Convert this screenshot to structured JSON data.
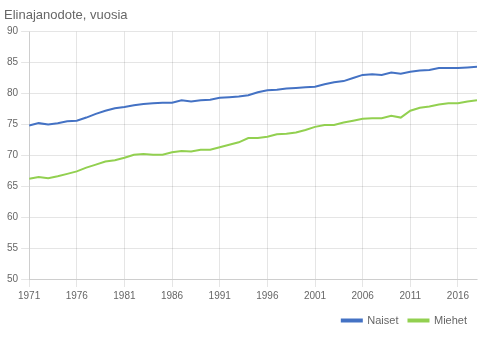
{
  "chart_data": {
    "type": "line",
    "title": "Elinajanodote, vuosia",
    "x": [
      1971,
      1972,
      1973,
      1974,
      1975,
      1976,
      1977,
      1978,
      1979,
      1980,
      1981,
      1982,
      1983,
      1984,
      1985,
      1986,
      1987,
      1988,
      1989,
      1990,
      1991,
      1992,
      1993,
      1994,
      1995,
      1996,
      1997,
      1998,
      1999,
      2000,
      2001,
      2002,
      2003,
      2004,
      2005,
      2006,
      2007,
      2008,
      2009,
      2010,
      2011,
      2012,
      2013,
      2014,
      2015,
      2016,
      2017,
      2018
    ],
    "series": [
      {
        "name": "Naiset",
        "color": "#4472C4",
        "values": [
          74.8,
          75.2,
          75.0,
          75.2,
          75.5,
          75.6,
          76.1,
          76.7,
          77.2,
          77.6,
          77.8,
          78.1,
          78.3,
          78.4,
          78.5,
          78.5,
          78.9,
          78.7,
          78.9,
          79.0,
          79.3,
          79.4,
          79.5,
          79.7,
          80.2,
          80.5,
          80.6,
          80.8,
          80.9,
          81.0,
          81.1,
          81.5,
          81.8,
          82.0,
          82.5,
          83.0,
          83.1,
          83.0,
          83.4,
          83.2,
          83.5,
          83.7,
          83.8,
          84.1,
          84.1,
          84.1,
          84.2,
          84.3
        ]
      },
      {
        "name": "Miehet",
        "color": "#92D050",
        "values": [
          66.2,
          66.5,
          66.3,
          66.6,
          67.0,
          67.4,
          68.0,
          68.5,
          69.0,
          69.2,
          69.6,
          70.1,
          70.2,
          70.1,
          70.1,
          70.5,
          70.7,
          70.6,
          70.9,
          70.9,
          71.3,
          71.7,
          72.1,
          72.8,
          72.8,
          73.0,
          73.4,
          73.5,
          73.7,
          74.1,
          74.6,
          74.9,
          74.9,
          75.3,
          75.6,
          75.9,
          76.0,
          76.0,
          76.4,
          76.1,
          77.2,
          77.7,
          77.9,
          78.2,
          78.4,
          78.4,
          78.7,
          78.9
        ]
      }
    ],
    "xlim": [
      1971,
      2018
    ],
    "xticks": [
      1971,
      1976,
      1981,
      1986,
      1991,
      1996,
      2001,
      2006,
      2011,
      2016
    ],
    "ylim": [
      50,
      90
    ],
    "yticks": [
      50,
      55,
      60,
      65,
      70,
      75,
      80,
      85,
      90
    ],
    "grid": true,
    "legend": "lower right"
  }
}
